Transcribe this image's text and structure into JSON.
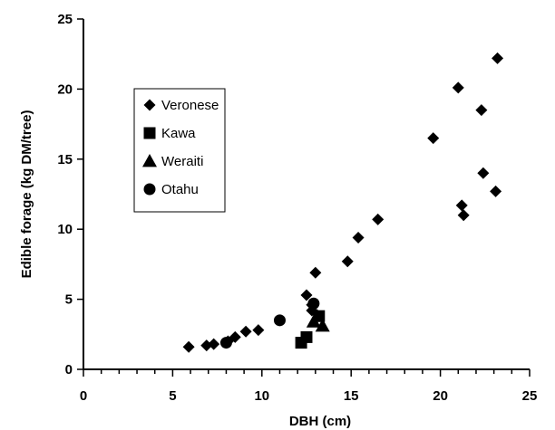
{
  "chart_data": {
    "type": "scatter",
    "title": "",
    "xlabel": "DBH (cm)",
    "ylabel": "Edible forage (kg DM/tree)",
    "xlim": [
      0,
      25
    ],
    "ylim": [
      0,
      25
    ],
    "x_ticks": [
      0,
      5,
      10,
      15,
      20,
      25
    ],
    "y_ticks": [
      0,
      5,
      10,
      15,
      20,
      25
    ],
    "x_tick_labels": [
      "0",
      "5",
      "10",
      "15",
      "20",
      "25"
    ],
    "y_tick_labels": [
      "0",
      "5",
      "10",
      "15",
      "20",
      "25"
    ],
    "x_minor_step": 1,
    "grid": false,
    "legend_position": "upper-left (inside plot)",
    "series": [
      {
        "name": "Veronese",
        "marker": "diamond",
        "color": "#000000",
        "points": [
          [
            5.9,
            1.6
          ],
          [
            6.9,
            1.7
          ],
          [
            7.3,
            1.8
          ],
          [
            8.1,
            2.0
          ],
          [
            8.5,
            2.3
          ],
          [
            9.1,
            2.7
          ],
          [
            9.8,
            2.8
          ],
          [
            12.5,
            5.3
          ],
          [
            12.8,
            4.6
          ],
          [
            12.8,
            4.2
          ],
          [
            13.0,
            6.9
          ],
          [
            14.8,
            7.7
          ],
          [
            15.4,
            9.4
          ],
          [
            16.5,
            10.7
          ],
          [
            19.6,
            16.5
          ],
          [
            21.0,
            20.1
          ],
          [
            21.2,
            11.7
          ],
          [
            21.3,
            11.0
          ],
          [
            22.3,
            18.5
          ],
          [
            22.4,
            14.0
          ],
          [
            23.1,
            12.7
          ],
          [
            23.2,
            22.2
          ]
        ]
      },
      {
        "name": "Kawa",
        "marker": "square",
        "color": "#000000",
        "points": [
          [
            12.2,
            1.9
          ],
          [
            12.5,
            2.3
          ],
          [
            13.2,
            3.8
          ]
        ]
      },
      {
        "name": "Weraiti",
        "marker": "triangle",
        "color": "#000000",
        "points": [
          [
            12.9,
            3.4
          ],
          [
            13.4,
            3.1
          ],
          [
            13.1,
            3.8
          ]
        ]
      },
      {
        "name": "Otahu",
        "marker": "circle",
        "color": "#000000",
        "points": [
          [
            8.0,
            1.9
          ],
          [
            11.0,
            3.5
          ],
          [
            12.9,
            4.7
          ]
        ]
      }
    ]
  }
}
